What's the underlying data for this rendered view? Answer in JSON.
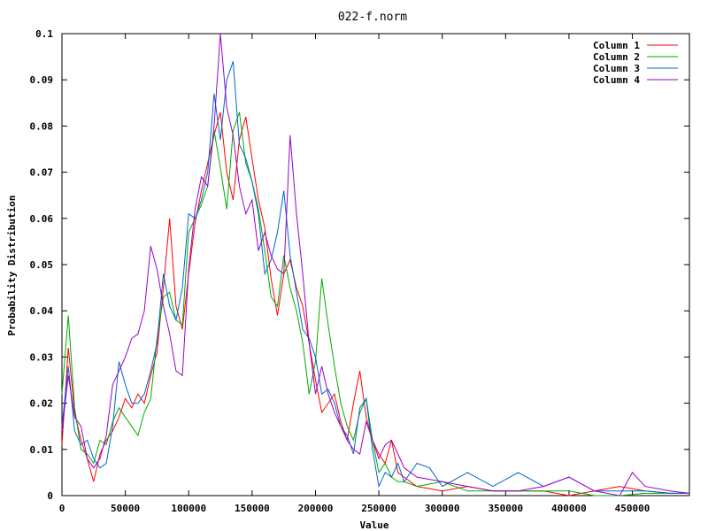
{
  "chart_data": {
    "type": "line",
    "title": "022-f.norm",
    "xlabel": "Value",
    "ylabel": "Probability Distribution",
    "xlim": [
      0,
      495000
    ],
    "ylim": [
      0,
      0.1
    ],
    "x_ticks": [
      "0",
      "50000",
      "100000",
      "150000",
      "200000",
      "250000",
      "300000",
      "350000",
      "400000",
      "450000"
    ],
    "y_ticks": [
      "0",
      "0.01",
      "0.02",
      "0.03",
      "0.04",
      "0.05",
      "0.06",
      "0.07",
      "0.08",
      "0.09",
      "0.1"
    ],
    "x_tick_values": [
      0,
      50000,
      100000,
      150000,
      200000,
      250000,
      300000,
      350000,
      400000,
      450000
    ],
    "y_tick_values": [
      0,
      0.01,
      0.02,
      0.03,
      0.04,
      0.05,
      0.06,
      0.07,
      0.08,
      0.09,
      0.1
    ],
    "grid": false,
    "legend_position": "top-right",
    "series": [
      {
        "name": "Column 1",
        "color": "#ff0000",
        "x": [
          0,
          5000,
          10000,
          15000,
          20000,
          25000,
          30000,
          35000,
          40000,
          45000,
          50000,
          55000,
          60000,
          65000,
          70000,
          75000,
          80000,
          85000,
          90000,
          95000,
          100000,
          105000,
          110000,
          115000,
          120000,
          125000,
          130000,
          135000,
          140000,
          145000,
          150000,
          155000,
          160000,
          165000,
          170000,
          175000,
          180000,
          185000,
          190000,
          195000,
          200000,
          205000,
          210000,
          215000,
          220000,
          225000,
          230000,
          235000,
          240000,
          245000,
          250000,
          255000,
          260000,
          265000,
          270000,
          280000,
          300000,
          320000,
          340000,
          360000,
          380000,
          400000,
          420000,
          440000,
          460000,
          480000,
          495000
        ],
        "y": [
          0.011,
          0.032,
          0.018,
          0.012,
          0.008,
          0.003,
          0.009,
          0.012,
          0.014,
          0.017,
          0.021,
          0.019,
          0.022,
          0.02,
          0.026,
          0.031,
          0.045,
          0.06,
          0.041,
          0.036,
          0.048,
          0.059,
          0.066,
          0.072,
          0.078,
          0.083,
          0.07,
          0.064,
          0.077,
          0.082,
          0.073,
          0.064,
          0.058,
          0.047,
          0.039,
          0.048,
          0.051,
          0.045,
          0.041,
          0.033,
          0.025,
          0.018,
          0.02,
          0.022,
          0.016,
          0.012,
          0.02,
          0.027,
          0.017,
          0.012,
          0.009,
          0.007,
          0.012,
          0.005,
          0.004,
          0.002,
          0.001,
          0.002,
          0.001,
          0.001,
          0.001,
          0.0,
          0.001,
          0.002,
          0.001,
          0.0005,
          0.0005
        ]
      },
      {
        "name": "Column 2",
        "color": "#00aa00",
        "x": [
          0,
          5000,
          10000,
          15000,
          20000,
          25000,
          30000,
          35000,
          40000,
          45000,
          50000,
          55000,
          60000,
          65000,
          70000,
          75000,
          80000,
          85000,
          90000,
          95000,
          100000,
          105000,
          110000,
          115000,
          120000,
          125000,
          130000,
          135000,
          140000,
          145000,
          150000,
          155000,
          160000,
          165000,
          170000,
          175000,
          180000,
          185000,
          190000,
          195000,
          200000,
          205000,
          210000,
          215000,
          220000,
          225000,
          230000,
          235000,
          240000,
          245000,
          250000,
          255000,
          260000,
          265000,
          270000,
          280000,
          300000,
          320000,
          340000,
          360000,
          380000,
          400000,
          420000,
          440000,
          460000,
          480000,
          495000
        ],
        "y": [
          0.022,
          0.039,
          0.019,
          0.01,
          0.009,
          0.007,
          0.012,
          0.011,
          0.016,
          0.019,
          0.017,
          0.015,
          0.013,
          0.018,
          0.021,
          0.034,
          0.043,
          0.044,
          0.038,
          0.037,
          0.057,
          0.06,
          0.063,
          0.067,
          0.079,
          0.071,
          0.062,
          0.079,
          0.083,
          0.072,
          0.068,
          0.062,
          0.053,
          0.043,
          0.041,
          0.052,
          0.045,
          0.04,
          0.033,
          0.022,
          0.029,
          0.047,
          0.037,
          0.028,
          0.02,
          0.015,
          0.012,
          0.018,
          0.021,
          0.012,
          0.005,
          0.007,
          0.004,
          0.003,
          0.003,
          0.002,
          0.003,
          0.001,
          0.001,
          0.001,
          0.001,
          0.001,
          0.0,
          0.0,
          0.0005,
          0.0005,
          0.0005
        ]
      },
      {
        "name": "Column 3",
        "color": "#0066cc",
        "x": [
          0,
          5000,
          10000,
          15000,
          20000,
          25000,
          30000,
          35000,
          40000,
          45000,
          50000,
          55000,
          60000,
          65000,
          70000,
          75000,
          80000,
          85000,
          90000,
          95000,
          100000,
          105000,
          110000,
          115000,
          120000,
          125000,
          130000,
          135000,
          140000,
          145000,
          150000,
          155000,
          160000,
          165000,
          170000,
          175000,
          180000,
          185000,
          190000,
          195000,
          200000,
          205000,
          210000,
          215000,
          220000,
          225000,
          230000,
          235000,
          240000,
          245000,
          250000,
          255000,
          260000,
          265000,
          270000,
          280000,
          290000,
          300000,
          320000,
          340000,
          360000,
          380000,
          400000,
          420000,
          440000,
          460000,
          480000,
          495000
        ],
        "y": [
          0.015,
          0.028,
          0.014,
          0.011,
          0.012,
          0.008,
          0.006,
          0.007,
          0.015,
          0.029,
          0.024,
          0.02,
          0.02,
          0.022,
          0.027,
          0.033,
          0.048,
          0.041,
          0.038,
          0.045,
          0.061,
          0.06,
          0.064,
          0.07,
          0.087,
          0.077,
          0.09,
          0.094,
          0.076,
          0.073,
          0.068,
          0.061,
          0.048,
          0.051,
          0.057,
          0.066,
          0.052,
          0.044,
          0.036,
          0.034,
          0.03,
          0.022,
          0.023,
          0.02,
          0.015,
          0.013,
          0.009,
          0.019,
          0.021,
          0.01,
          0.002,
          0.005,
          0.004,
          0.007,
          0.003,
          0.007,
          0.006,
          0.002,
          0.005,
          0.002,
          0.005,
          0.002,
          0.004,
          0.001,
          0.001,
          0.001,
          0.0005,
          0.0005
        ]
      },
      {
        "name": "Column 4",
        "color": "#9900cc",
        "x": [
          0,
          5000,
          10000,
          15000,
          20000,
          25000,
          30000,
          35000,
          40000,
          45000,
          50000,
          55000,
          60000,
          65000,
          70000,
          75000,
          80000,
          85000,
          90000,
          95000,
          100000,
          105000,
          110000,
          115000,
          120000,
          125000,
          130000,
          135000,
          140000,
          145000,
          150000,
          155000,
          160000,
          165000,
          170000,
          175000,
          180000,
          185000,
          190000,
          195000,
          200000,
          205000,
          210000,
          215000,
          220000,
          225000,
          230000,
          235000,
          240000,
          245000,
          250000,
          255000,
          260000,
          265000,
          270000,
          280000,
          300000,
          320000,
          340000,
          360000,
          380000,
          400000,
          420000,
          440000,
          450000,
          460000,
          480000,
          495000
        ],
        "y": [
          0.014,
          0.026,
          0.017,
          0.015,
          0.008,
          0.006,
          0.008,
          0.013,
          0.024,
          0.027,
          0.03,
          0.034,
          0.035,
          0.04,
          0.054,
          0.049,
          0.041,
          0.035,
          0.027,
          0.026,
          0.049,
          0.062,
          0.069,
          0.067,
          0.08,
          0.1,
          0.084,
          0.078,
          0.067,
          0.061,
          0.064,
          0.053,
          0.057,
          0.052,
          0.049,
          0.048,
          0.078,
          0.061,
          0.048,
          0.033,
          0.022,
          0.028,
          0.022,
          0.018,
          0.015,
          0.012,
          0.01,
          0.009,
          0.016,
          0.012,
          0.008,
          0.011,
          0.012,
          0.009,
          0.006,
          0.004,
          0.003,
          0.002,
          0.001,
          0.001,
          0.002,
          0.004,
          0.001,
          0.0,
          0.005,
          0.002,
          0.001,
          0.0005
        ]
      }
    ]
  }
}
